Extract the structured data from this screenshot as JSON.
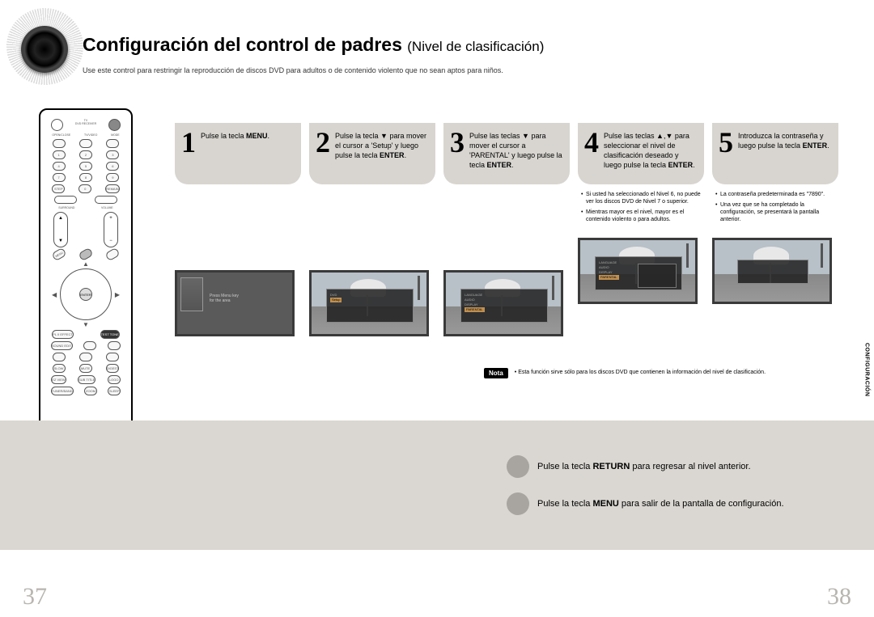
{
  "title_main": "Configuración del control de padres",
  "title_sub": "(Nivel de clasificación)",
  "intro": "Use este control para restringir la reproducción de discos DVD para adultos o de contenido violento que no sean aptos para niños.",
  "steps": [
    {
      "num": "1",
      "text": "Pulse la tecla <b>MENU</b>."
    },
    {
      "num": "2",
      "text": "Pulse la tecla ▼ para mover el cursor a 'Setup' y luego pulse la tecla <b>ENTER</b>."
    },
    {
      "num": "3",
      "text": "Pulse las teclas ▼ para mover el cursor a 'PARENTAL' y luego pulse la tecla <b>ENTER</b>."
    },
    {
      "num": "4",
      "text": "Pulse las teclas ▲,▼ para seleccionar el nivel de clasificación deseado y luego pulse la tecla <b>ENTER</b>.",
      "notes": [
        "Si usted ha seleccionado el Nivel 6, no puede ver los discos DVD de Nivel 7 o superior.",
        "Mientras mayor es el nivel, mayor es el contenido violento o para adultos."
      ]
    },
    {
      "num": "5",
      "text": "Introduzca la contraseña y luego pulse la tecla <b>ENTER</b>.",
      "notes": [
        "La contraseña predeterminada es \"7890\".",
        "Una vez que se ha completado la configuración, se presentará la pantalla anterior."
      ]
    }
  ],
  "note_badge": "Nota",
  "note_text": "Esta función sirve sólo para los discos DVD que contienen la información del nivel de clasificación.",
  "side_tab": "CONFIGURACIÓN",
  "footer": [
    "Pulse la tecla <b>RETURN</b> para regresar al nivel anterior.",
    "Pulse la tecla <b>MENU</b> para salir de la pantalla de configuración."
  ],
  "page_left": "37",
  "page_right": "38",
  "colors": {
    "step_bg": "#d8d5d0",
    "footer_bg": "#dad7d2",
    "page_num": "#b8b5b0",
    "footer_dot": "#a8a5a0",
    "screenshot_border": "#3a3a3a",
    "screenshot_bg": "#5a5a5a"
  }
}
